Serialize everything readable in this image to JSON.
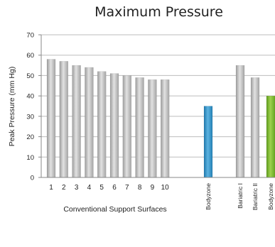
{
  "chart_data": {
    "type": "bar",
    "title": "Maximum Pressure",
    "ylabel": "Peak Pressure  (mm Hg)",
    "xlabel": "Conventional Support Surfaces",
    "ylim": [
      0,
      70
    ],
    "yticks": [
      0,
      10,
      20,
      30,
      40,
      50,
      60,
      70
    ],
    "grid": true,
    "categories": [
      "1",
      "2",
      "3",
      "4",
      "5",
      "6",
      "7",
      "8",
      "9",
      "10",
      "Bodyzone",
      "Bariatric I",
      "Bariatric II",
      "Bodyzone"
    ],
    "values": [
      58,
      57,
      55,
      54,
      52,
      51,
      50,
      49,
      48,
      48,
      35,
      55,
      49,
      40
    ],
    "bar_colors": [
      "#b8b8b8",
      "#b8b8b8",
      "#b8b8b8",
      "#b8b8b8",
      "#b8b8b8",
      "#b8b8b8",
      "#b8b8b8",
      "#b8b8b8",
      "#b8b8b8",
      "#b8b8b8",
      "#2e8fc6",
      "#b8b8b8",
      "#b8b8b8",
      "#7cb82f"
    ],
    "label_orientation": [
      "horizontal",
      "horizontal",
      "horizontal",
      "horizontal",
      "horizontal",
      "horizontal",
      "horizontal",
      "horizontal",
      "horizontal",
      "horizontal",
      "vertical",
      "vertical",
      "vertical",
      "vertical"
    ]
  }
}
